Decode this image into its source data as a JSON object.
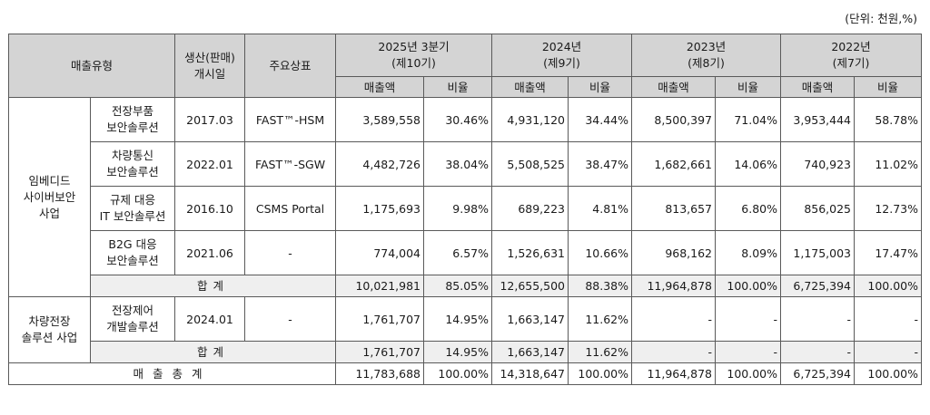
{
  "unit_label": "(단위: 천원,%)",
  "header": {
    "sales_type": "매출유형",
    "start_line1": "생산(판매)",
    "start_line2": "개시일",
    "brand": "주요상표",
    "periods": [
      {
        "line1": "2025년 3분기",
        "line2": "(제10기)"
      },
      {
        "line1": "2024년",
        "line2": "(제9기)"
      },
      {
        "line1": "2023년",
        "line2": "(제8기)"
      },
      {
        "line1": "2022년",
        "line2": "(제7기)"
      }
    ],
    "amount": "매출액",
    "ratio": "비율"
  },
  "groups": {
    "embedded": {
      "line1": "임베디드",
      "line2": "사이버보안",
      "line3": "사업",
      "rows": [
        {
          "name1": "전장부품",
          "name2": "보안솔루션",
          "start": "2017.03",
          "brand": "FAST™-HSM",
          "v": [
            "3,589,558",
            "30.46%",
            "4,931,120",
            "34.44%",
            "8,500,397",
            "71.04%",
            "3,953,444",
            "58.78%"
          ]
        },
        {
          "name1": "차량통신",
          "name2": "보안솔루션",
          "start": "2022.01",
          "brand": "FAST™-SGW",
          "v": [
            "4,482,726",
            "38.04%",
            "5,508,525",
            "38.47%",
            "1,682,661",
            "14.06%",
            "740,923",
            "11.02%"
          ]
        },
        {
          "name1": "규제 대응",
          "name2": "IT 보안솔루션",
          "start": "2016.10",
          "brand": "CSMS Portal",
          "v": [
            "1,175,693",
            "9.98%",
            "689,223",
            "4.81%",
            "813,657",
            "6.80%",
            "856,025",
            "12.73%"
          ]
        },
        {
          "name1": "B2G 대응",
          "name2": "보안솔루션",
          "start": "2021.06",
          "brand": "-",
          "v": [
            "774,004",
            "6.57%",
            "1,526,631",
            "10.66%",
            "968,162",
            "8.09%",
            "1,175,003",
            "17.47%"
          ]
        }
      ],
      "subtotal": {
        "label": "합계",
        "v": [
          "10,021,981",
          "85.05%",
          "12,655,500",
          "88.38%",
          "11,964,878",
          "100.00%",
          "6,725,394",
          "100.00%"
        ]
      }
    },
    "vehicle": {
      "line1": "차량전장",
      "line2": "솔루션 사업",
      "rows": [
        {
          "name1": "전장제어",
          "name2": "개발솔루션",
          "start": "2024.01",
          "brand": "-",
          "v": [
            "1,761,707",
            "14.95%",
            "1,663,147",
            "11.62%",
            "-",
            "-",
            "-",
            "-"
          ]
        }
      ],
      "subtotal": {
        "label": "합계",
        "v": [
          "1,761,707",
          "14.95%",
          "1,663,147",
          "11.62%",
          "-",
          "-",
          "-",
          "-"
        ]
      }
    }
  },
  "grand_total": {
    "label": "매출총계",
    "v": [
      "11,783,688",
      "100.00%",
      "14,318,647",
      "100.00%",
      "11,964,878",
      "100.00%",
      "6,725,394",
      "100.00%"
    ]
  }
}
